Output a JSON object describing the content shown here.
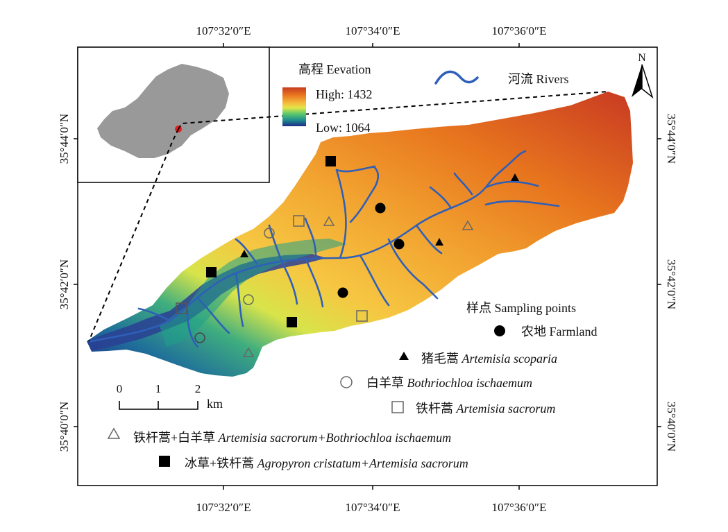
{
  "coordinates": {
    "top": [
      "107°32′0″E",
      "107°34′0″E",
      "107°36′0″E"
    ],
    "bottom": [
      "107°32′0″E",
      "107°34′0″E",
      "107°36′0″E"
    ],
    "left": [
      "35°44′0″N",
      "35°42′0″N",
      "35°40′0″N"
    ],
    "right": [
      "35°44′0″N",
      "35°42′0″N",
      "35°40′0″N"
    ]
  },
  "elevation_legend": {
    "title": "高程 Eevation",
    "high": "High: 1432",
    "low": "Low: 1064",
    "colors": [
      "#c83a22",
      "#e8761e",
      "#f4b43a",
      "#e7e548",
      "#5cc86a",
      "#1f8f8e",
      "#1d2a86"
    ]
  },
  "rivers_legend": {
    "label": "河流 Rivers",
    "color": "#2f5fb8"
  },
  "north_arrow": {
    "label": "N"
  },
  "scale_bar": {
    "ticks": [
      "0",
      "1",
      "2"
    ],
    "unit": "km"
  },
  "sampling_legend": {
    "title": "样点 Sampling points",
    "items": [
      {
        "symbol": "filled-circle",
        "cn": "农地",
        "en": "Farmland",
        "en_italic": false
      },
      {
        "symbol": "filled-triangle",
        "cn": "猪毛蒿",
        "en": "Artemisia scoparia",
        "en_italic": true
      },
      {
        "symbol": "open-circle",
        "cn": "白羊草",
        "en": "Bothriochloa ischaemum",
        "en_italic": true
      },
      {
        "symbol": "open-square",
        "cn": "铁杆蒿",
        "en": "Artemisia sacrorum",
        "en_italic": true
      },
      {
        "symbol": "open-triangle",
        "cn": "铁杆蒿+白羊草",
        "en": "Artemisia sacrorum+Bothriochloa ischaemum",
        "en_italic": true
      },
      {
        "symbol": "filled-square",
        "cn": "冰草+铁杆蒿",
        "en": "Agropyron cristatum+Artemisia sacrorum",
        "en_italic": true
      }
    ]
  },
  "inset": {
    "land_color": "#999999",
    "location_color": "#e02020"
  }
}
